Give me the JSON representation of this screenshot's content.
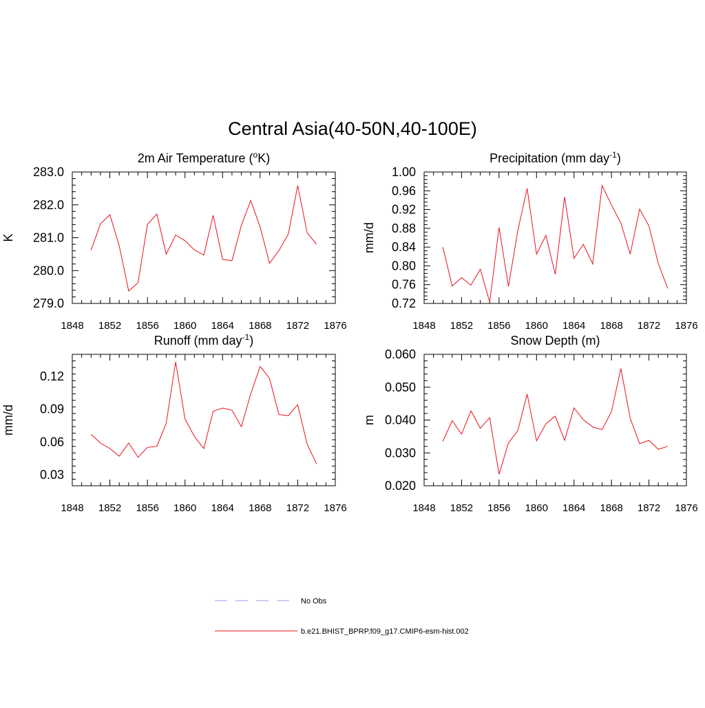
{
  "figure": {
    "title": "Central Asia(40-50N,40-100E)"
  },
  "legend": {
    "obs_label": "No Obs",
    "obs_color": "#9999ee",
    "model_label": "b.e21.BHIST_BPRP.f09_g17.CMIP6-esm-hist.002",
    "model_color": "#e8101a"
  },
  "chart_data": [
    {
      "type": "line",
      "title": "2m Air Temperature (",
      "title_sup": "o",
      "title_tail": "K)",
      "ylabel": "K",
      "xlim": [
        1848,
        1876
      ],
      "ylim": [
        279.0,
        283.0
      ],
      "x_ticks": [
        "1848",
        "1852",
        "1856",
        "1860",
        "1864",
        "1868",
        "1872",
        "1876"
      ],
      "y_ticks": [
        "279.0",
        "280.0",
        "281.0",
        "282.0",
        "283.0"
      ],
      "series": [
        {
          "name": "b.e21.BHIST_BPRP.f09_g17.CMIP6-esm-hist.002",
          "x": [
            1850,
            1851,
            1852,
            1853,
            1854,
            1855,
            1856,
            1857,
            1858,
            1859,
            1860,
            1861,
            1862,
            1863,
            1864,
            1865,
            1866,
            1867,
            1868,
            1869,
            1870,
            1871,
            1872,
            1873,
            1874
          ],
          "values": [
            280.62,
            281.42,
            281.7,
            280.75,
            279.38,
            279.63,
            281.4,
            281.72,
            280.5,
            281.08,
            280.91,
            280.63,
            280.47,
            281.68,
            280.34,
            280.3,
            281.38,
            282.13,
            281.32,
            280.22,
            280.61,
            281.11,
            282.59,
            281.15,
            280.8
          ]
        }
      ]
    },
    {
      "type": "line",
      "title": "Precipitation (mm day",
      "title_sup": "-1",
      "title_tail": ")",
      "ylabel": "mm/d",
      "xlim": [
        1848,
        1876
      ],
      "ylim": [
        0.72,
        1.0
      ],
      "x_ticks": [
        "1848",
        "1852",
        "1856",
        "1860",
        "1864",
        "1868",
        "1872",
        "1876"
      ],
      "y_ticks": [
        "0.72",
        "0.76",
        "0.80",
        "0.84",
        "0.88",
        "0.92",
        "0.96",
        "1.00"
      ],
      "series": [
        {
          "name": "b.e21.BHIST_BPRP.f09_g17.CMIP6-esm-hist.002",
          "x": [
            1850,
            1851,
            1852,
            1853,
            1854,
            1855,
            1856,
            1857,
            1858,
            1859,
            1860,
            1861,
            1862,
            1863,
            1864,
            1865,
            1866,
            1867,
            1868,
            1869,
            1870,
            1871,
            1872,
            1873,
            1874
          ],
          "values": [
            0.84,
            0.757,
            0.775,
            0.759,
            0.793,
            0.723,
            0.882,
            0.756,
            0.875,
            0.965,
            0.825,
            0.865,
            0.782,
            0.947,
            0.816,
            0.846,
            0.804,
            0.971,
            0.93,
            0.891,
            0.825,
            0.921,
            0.885,
            0.805,
            0.752
          ]
        }
      ]
    },
    {
      "type": "line",
      "title": "Runoff (mm day",
      "title_sup": "-1",
      "title_tail": ")",
      "ylabel": "mm/d",
      "xlim": [
        1848,
        1876
      ],
      "ylim": [
        0.02,
        0.14
      ],
      "x_ticks": [
        "1848",
        "1852",
        "1856",
        "1860",
        "1864",
        "1868",
        "1872",
        "1876"
      ],
      "y_tick_values": [
        0.03,
        0.06,
        0.09,
        0.12
      ],
      "y_ticks": [
        "0.03",
        "0.06",
        "0.09",
        "0.12"
      ],
      "series": [
        {
          "name": "b.e21.BHIST_BPRP.f09_g17.CMIP6-esm-hist.002",
          "x": [
            1850,
            1851,
            1852,
            1853,
            1854,
            1855,
            1856,
            1857,
            1858,
            1859,
            1860,
            1861,
            1862,
            1863,
            1864,
            1865,
            1866,
            1867,
            1868,
            1869,
            1870,
            1871,
            1872,
            1873,
            1874
          ],
          "values": [
            0.067,
            0.059,
            0.054,
            0.047,
            0.059,
            0.046,
            0.055,
            0.056,
            0.077,
            0.133,
            0.081,
            0.065,
            0.054,
            0.088,
            0.091,
            0.089,
            0.074,
            0.104,
            0.129,
            0.118,
            0.085,
            0.084,
            0.094,
            0.058,
            0.04
          ]
        }
      ]
    },
    {
      "type": "line",
      "title": "Snow Depth (m)",
      "title_sup": "",
      "title_tail": "",
      "ylabel": "m",
      "xlim": [
        1848,
        1876
      ],
      "ylim": [
        0.02,
        0.06
      ],
      "x_ticks": [
        "1848",
        "1852",
        "1856",
        "1860",
        "1864",
        "1868",
        "1872",
        "1876"
      ],
      "y_ticks": [
        "0.020",
        "0.030",
        "0.040",
        "0.050",
        "0.060"
      ],
      "series": [
        {
          "name": "b.e21.BHIST_BPRP.f09_g17.CMIP6-esm-hist.002",
          "x": [
            1850,
            1851,
            1852,
            1853,
            1854,
            1855,
            1856,
            1857,
            1858,
            1859,
            1860,
            1861,
            1862,
            1863,
            1864,
            1865,
            1866,
            1867,
            1868,
            1869,
            1870,
            1871,
            1872,
            1873,
            1874
          ],
          "values": [
            0.0335,
            0.0398,
            0.0357,
            0.0428,
            0.0375,
            0.0407,
            0.0235,
            0.033,
            0.0368,
            0.0479,
            0.0337,
            0.0389,
            0.0412,
            0.0338,
            0.0437,
            0.0401,
            0.0379,
            0.0371,
            0.0425,
            0.0557,
            0.0405,
            0.0328,
            0.0338,
            0.0311,
            0.032
          ]
        }
      ]
    }
  ]
}
